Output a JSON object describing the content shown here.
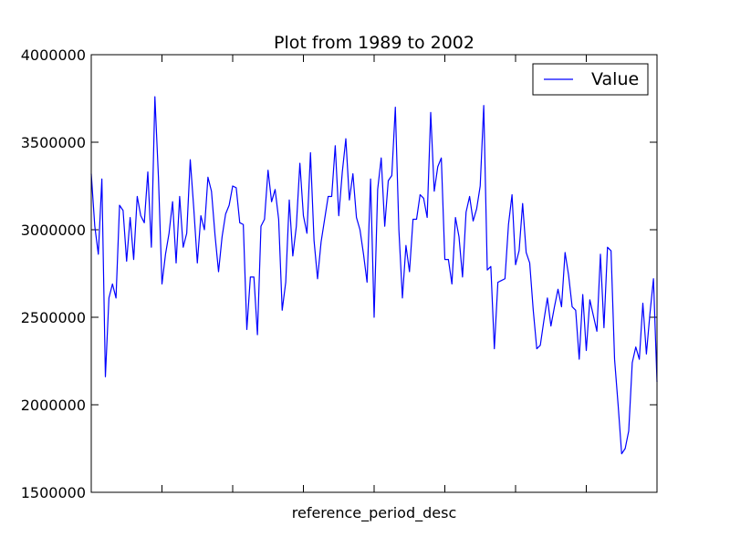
{
  "chart_data": {
    "type": "line",
    "title": "Plot from 1989 to 2002",
    "xlabel": "reference_period_desc",
    "ylabel": "",
    "ylim": [
      1500000,
      4000000
    ],
    "yticks": [
      1500000,
      2000000,
      2500000,
      3000000,
      3500000,
      4000000
    ],
    "ytick_labels": [
      "1500000",
      "2000000",
      "2500000",
      "3000000",
      "3500000",
      "4000000"
    ],
    "xtick_count": 8,
    "legend": {
      "location": "top-right"
    },
    "grid": false,
    "series": [
      {
        "name": "Value",
        "color": "#0000ff",
        "values": [
          3320000,
          3020000,
          2860000,
          3290000,
          2160000,
          2610000,
          2690000,
          2610000,
          3140000,
          3110000,
          2820000,
          3070000,
          2830000,
          3190000,
          3080000,
          3040000,
          3330000,
          2900000,
          3760000,
          3300000,
          2690000,
          2860000,
          2980000,
          3160000,
          2810000,
          3190000,
          2900000,
          2980000,
          3400000,
          3120000,
          2810000,
          3080000,
          3000000,
          3300000,
          3220000,
          2970000,
          2760000,
          2960000,
          3090000,
          3140000,
          3250000,
          3240000,
          3040000,
          3030000,
          2430000,
          2730000,
          2730000,
          2400000,
          3020000,
          3060000,
          3340000,
          3160000,
          3230000,
          3060000,
          2540000,
          2700000,
          3170000,
          2850000,
          3020000,
          3380000,
          3080000,
          2980000,
          3440000,
          2940000,
          2720000,
          2930000,
          3060000,
          3190000,
          3190000,
          3480000,
          3080000,
          3330000,
          3520000,
          3170000,
          3320000,
          3070000,
          3000000,
          2860000,
          2700000,
          3290000,
          2500000,
          3230000,
          3410000,
          3020000,
          3280000,
          3310000,
          3700000,
          3000000,
          2610000,
          2910000,
          2760000,
          3060000,
          3060000,
          3200000,
          3180000,
          3070000,
          3670000,
          3220000,
          3360000,
          3410000,
          2830000,
          2830000,
          2690000,
          3070000,
          2960000,
          2730000,
          3100000,
          3190000,
          3050000,
          3120000,
          3250000,
          3710000,
          2770000,
          2790000,
          2320000,
          2700000,
          2710000,
          2720000,
          3030000,
          3200000,
          2800000,
          2880000,
          3150000,
          2870000,
          2810000,
          2540000,
          2320000,
          2340000,
          2480000,
          2610000,
          2450000,
          2560000,
          2660000,
          2560000,
          2870000,
          2740000,
          2560000,
          2540000,
          2260000,
          2630000,
          2310000,
          2600000,
          2510000,
          2420000,
          2860000,
          2440000,
          2900000,
          2880000,
          2260000,
          2000000,
          1720000,
          1750000,
          1850000,
          2240000,
          2330000,
          2260000,
          2580000,
          2290000,
          2520000,
          2720000,
          2130000
        ]
      }
    ]
  }
}
